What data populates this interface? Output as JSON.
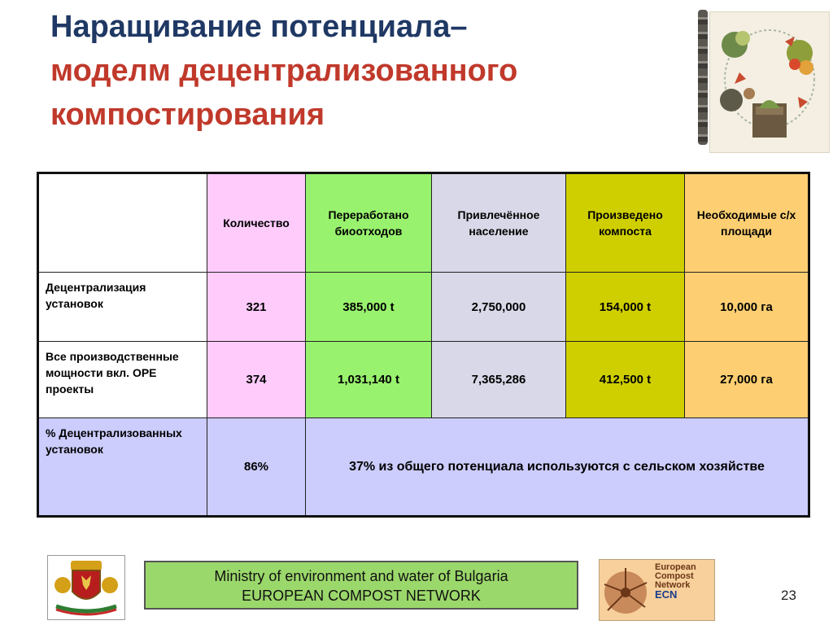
{
  "title": {
    "line1": "Наращивание потенциала–",
    "line2": "моделм децентрализованного",
    "line3": "компостирования"
  },
  "table": {
    "headers": [
      "",
      "Количество",
      "Переработано биоотходов",
      "Привлечённое население",
      "Произведено компоста",
      "Необходимые с/х площади"
    ],
    "rows": [
      {
        "label": "Децентрализация установок",
        "cells": [
          "321",
          "385,000 t",
          "2,750,000",
          "154,000 t",
          "10,000 га"
        ]
      },
      {
        "label": "Все производственные мощности вкл. OPE проекты",
        "cells": [
          "374",
          "1,031,140 t",
          "7,365,286",
          "412,500 t",
          "27,000 га"
        ]
      },
      {
        "label": "% Децентрализованных установок",
        "cells": [
          "86%",
          "37% из общего потенциала используются с сельском хозяйстве"
        ]
      }
    ]
  },
  "footer": {
    "ministry_line1": "Ministry of environment and water of Bulgaria",
    "ministry_line2": "EUROPEAN COMPOST NETWORK",
    "ecn_logo_text": [
      "European",
      "Compost",
      "Network",
      "ECN"
    ],
    "page_number": "23"
  },
  "colors": {
    "title_dark": "#1f3864",
    "title_red": "#c0392b",
    "pink": "#fecbfb",
    "green": "#99f26e",
    "gray": "#d8d8e8",
    "olive": "#cfcf00",
    "orange": "#fdcf72",
    "lavender": "#ccccfd"
  }
}
